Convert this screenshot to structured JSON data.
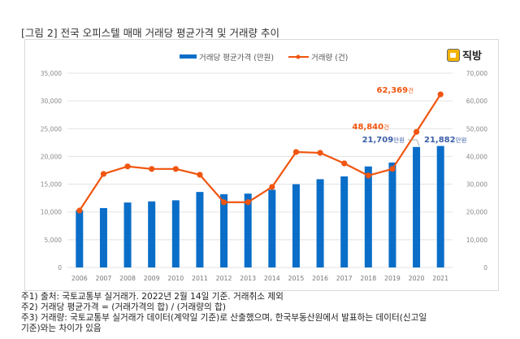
{
  "figure_title": "[그림 2] 전국 오피스텔 매매 거래당 평균가격 및 거래량 추이",
  "logo": {
    "text": "직방",
    "icon": "house-icon"
  },
  "notes": [
    "주1) 출처: 국토교통부 실거래가. 2022년 2월 14일 기준. 거래취소 제외",
    "주2) 거래당 평균가격 = (거래가격의 합) / (거래량의 합)",
    "주3) 거래량: 국토교통부 실거래가 데이터(계약일 기준)로 산출했으며, 한국부동산원에서 발표하는 데이터(신고일",
    "기준)와는 차이가 있음"
  ],
  "colors": {
    "bar": "#0a6ec8",
    "line": "#f0550f",
    "bar_label": "#3b5fa8",
    "line_label": "#f0550f",
    "grid": "#e3e3e3",
    "tick": "#888888"
  },
  "chart_data": {
    "type": "bar+line",
    "title": "",
    "categories": [
      "2006",
      "2007",
      "2008",
      "2009",
      "2010",
      "2011",
      "2012",
      "2013",
      "2014",
      "2015",
      "2016",
      "2017",
      "2018",
      "2019",
      "2020",
      "2021"
    ],
    "series": [
      {
        "name": "거래당 평균가격 (만원)",
        "type": "bar",
        "axis": "left",
        "values": [
          10300,
          10700,
          11700,
          11900,
          12100,
          13600,
          13200,
          13300,
          14000,
          15000,
          15900,
          16400,
          18200,
          18900,
          21709,
          21882
        ]
      },
      {
        "name": "거래량 (건)",
        "type": "line",
        "axis": "right",
        "values": [
          20500,
          33700,
          36400,
          35500,
          35500,
          33400,
          23500,
          23500,
          29000,
          41600,
          41300,
          37500,
          33100,
          35500,
          48840,
          62369
        ]
      }
    ],
    "left_axis": {
      "ylim": [
        0,
        35000
      ],
      "ticks": [
        "0",
        "5,000",
        "10,000",
        "15,000",
        "20,000",
        "25,000",
        "30,000",
        "35,000"
      ]
    },
    "right_axis": {
      "ylim": [
        0,
        70000
      ],
      "ticks": [
        "0",
        "10,000",
        "20,000",
        "30,000",
        "40,000",
        "50,000",
        "60,000",
        "70,000"
      ]
    },
    "legend": {
      "position": "top-center",
      "entries": [
        "거래당 평균가격 (만원)",
        "거래량 (건)"
      ]
    },
    "grid": true,
    "annotations": {
      "bar_2020": {
        "value": "21,709",
        "unit": "만원"
      },
      "bar_2021": {
        "value": "21,882",
        "unit": "만원"
      },
      "line_2020": {
        "value": "48,840",
        "unit": "건"
      },
      "line_2021": {
        "value": "62,369",
        "unit": "건"
      }
    }
  }
}
